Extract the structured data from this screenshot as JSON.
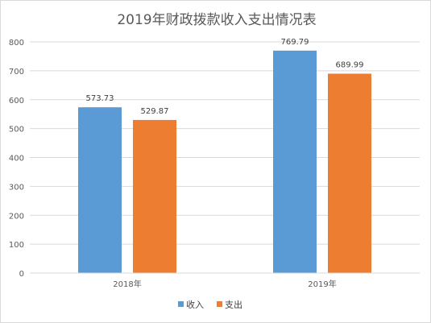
{
  "chart_data": {
    "type": "bar",
    "title": "2019年财政拨款收入支出情况表",
    "categories": [
      "2018年",
      "2019年"
    ],
    "series": [
      {
        "name": "收入",
        "values": [
          573.73,
          769.79
        ],
        "color": "#5b9bd5"
      },
      {
        "name": "支出",
        "values": [
          529.87,
          689.99
        ],
        "color": "#ed7d31"
      }
    ],
    "ylim": [
      0,
      800
    ],
    "yticks": [
      0,
      100,
      200,
      300,
      400,
      500,
      600,
      700,
      800
    ],
    "grid": true,
    "legend_position": "bottom",
    "xlabel": "",
    "ylabel": ""
  }
}
